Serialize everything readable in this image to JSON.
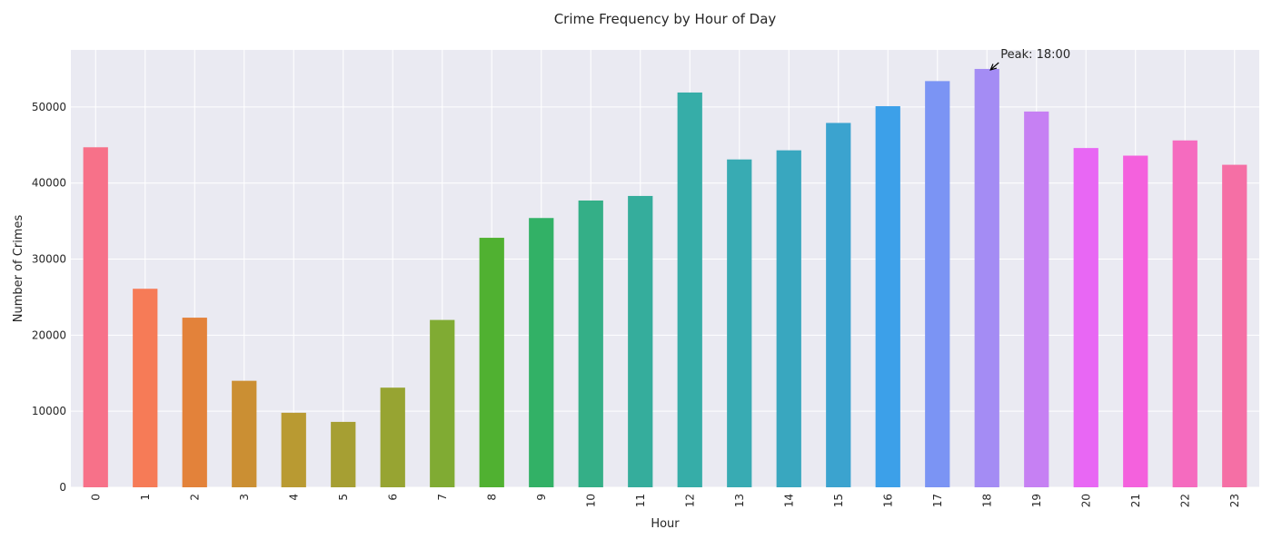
{
  "chart_data": {
    "type": "bar",
    "title": "Crime Frequency by Hour of Day",
    "xlabel": "Hour",
    "ylabel": "Number of Crimes",
    "categories": [
      "0",
      "1",
      "2",
      "3",
      "4",
      "5",
      "6",
      "7",
      "8",
      "9",
      "10",
      "11",
      "12",
      "13",
      "14",
      "15",
      "16",
      "17",
      "18",
      "19",
      "20",
      "21",
      "22",
      "23"
    ],
    "values": [
      44700,
      26100,
      22300,
      14000,
      9800,
      8600,
      13100,
      22000,
      32800,
      35400,
      37700,
      38300,
      51900,
      43100,
      44300,
      47900,
      50100,
      53400,
      55000,
      49400,
      44600,
      43600,
      45600,
      42400
    ],
    "ylim": [
      0,
      57500
    ],
    "yticks": [
      0,
      10000,
      20000,
      30000,
      40000,
      50000
    ],
    "ytick_labels": [
      "0",
      "10000",
      "20000",
      "30000",
      "40000",
      "50000"
    ],
    "grid": true,
    "colors": [
      "#f77189",
      "#f67b57",
      "#e3823a",
      "#cb8f33",
      "#b99a32",
      "#a69f33",
      "#97a432",
      "#80ab33",
      "#50b131",
      "#32b166",
      "#34af87",
      "#35ad9c",
      "#36ada8",
      "#38abb3",
      "#39a7bf",
      "#3ba3cf",
      "#3ca0e9",
      "#7b94f4",
      "#a48cf4",
      "#c680f3",
      "#e867f4",
      "#f461dd",
      "#f56bbf",
      "#f56fa5"
    ],
    "annotation": {
      "text": "Peak: 18:00",
      "category": "18"
    }
  }
}
